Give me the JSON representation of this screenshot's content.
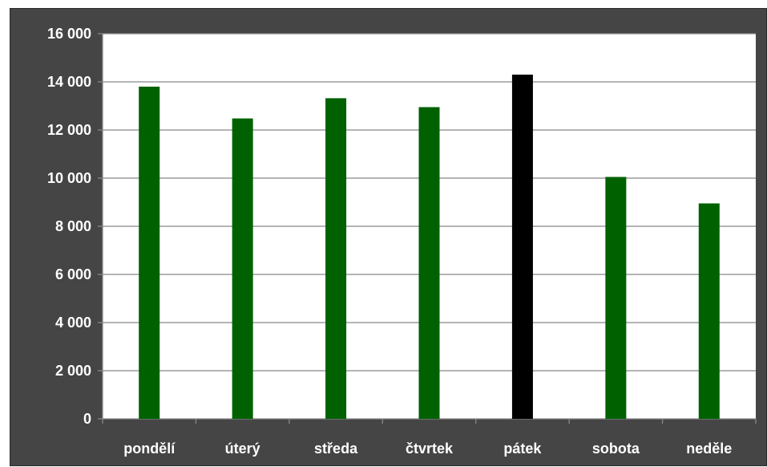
{
  "chart_data": {
    "type": "bar",
    "categories": [
      "pondělí",
      "úterý",
      "středa",
      "čtvrtek",
      "pátek",
      "sobota",
      "neděle"
    ],
    "values": [
      13800,
      12480,
      13320,
      12950,
      14300,
      10050,
      8950
    ],
    "highlight_color": "#000000",
    "highlighted_category": "pátek",
    "bar_color": "#006100",
    "ylim": [
      0,
      16000
    ],
    "yticks": [
      0,
      2000,
      4000,
      6000,
      8000,
      10000,
      12000,
      14000,
      16000
    ],
    "ytick_labels": [
      "0",
      "2 000",
      "4 000",
      "6 000",
      "8 000",
      "10 000",
      "12 000",
      "14 000",
      "16 000"
    ],
    "title": "",
    "xlabel": "",
    "ylabel": "",
    "grid": true,
    "legend": "none",
    "colors": {
      "frame": "#454545",
      "plot_bg": "#ffffff",
      "grid": "#878787",
      "text": "#ffffff"
    }
  }
}
